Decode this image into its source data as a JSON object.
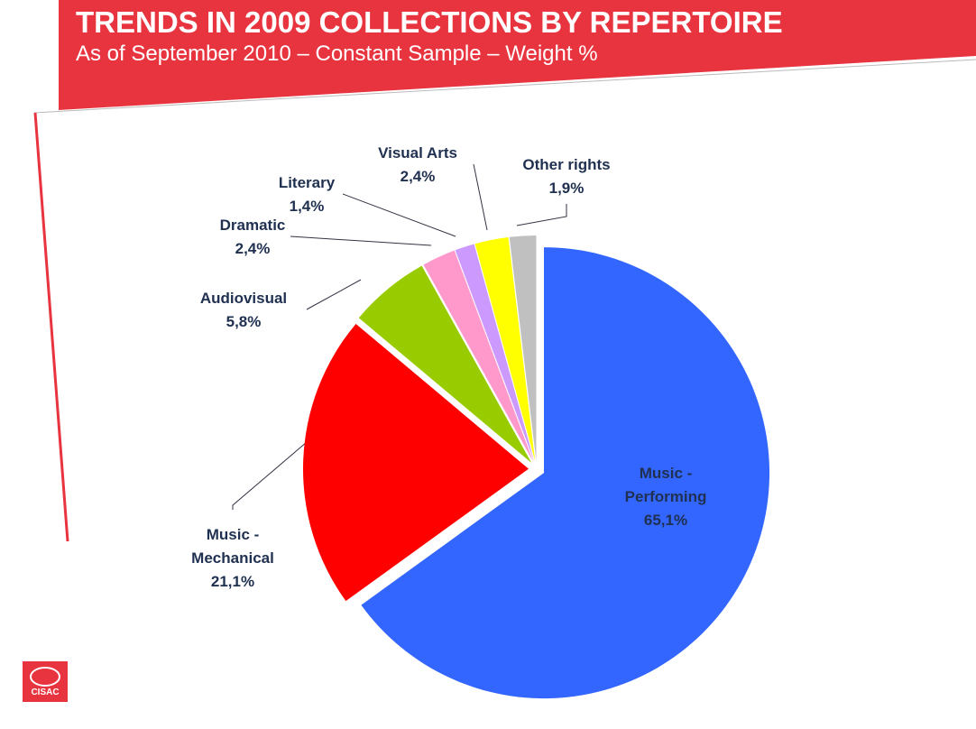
{
  "chart_data": {
    "type": "pie",
    "title": "TRENDS IN 2009 COLLECTIONS BY REPERTOIRE",
    "subtitle": "As of September 2010 – Constant Sample – Weight %",
    "categories": [
      "Music - Performing",
      "Music - Mechanical",
      "Audiovisual",
      "Dramatic",
      "Literary",
      "Visual Arts",
      "Other rights"
    ],
    "values": [
      65.1,
      21.1,
      5.8,
      2.4,
      1.4,
      2.4,
      1.9
    ],
    "value_labels": [
      "65,1%",
      "21,1%",
      "5,8%",
      "2,4%",
      "1,4%",
      "2,4%",
      "1,9%"
    ],
    "colors": [
      "#3366ff",
      "#ff0000",
      "#99cc00",
      "#ff99cc",
      "#cc99ff",
      "#ffff00",
      "#c0c0c0"
    ]
  },
  "logo": "CISAC"
}
